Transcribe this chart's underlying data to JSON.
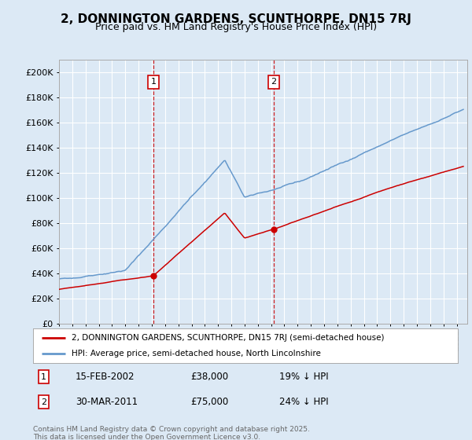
{
  "title": "2, DONNINGTON GARDENS, SCUNTHORPE, DN15 7RJ",
  "subtitle": "Price paid vs. HM Land Registry's House Price Index (HPI)",
  "background_color": "#dce9f5",
  "plot_bg_color": "#dce9f5",
  "hpi_color": "#6699cc",
  "price_color": "#cc0000",
  "ylim": [
    0,
    210000
  ],
  "yticks": [
    0,
    20000,
    40000,
    60000,
    80000,
    100000,
    120000,
    140000,
    160000,
    180000,
    200000
  ],
  "sale1_year": 2002.12,
  "sale1_price": 38000,
  "sale1_date": "15-FEB-2002",
  "sale1_note": "19% ↓ HPI",
  "sale2_year": 2011.21,
  "sale2_price": 75000,
  "sale2_date": "30-MAR-2011",
  "sale2_note": "24% ↓ HPI",
  "legend_line1": "2, DONNINGTON GARDENS, SCUNTHORPE, DN15 7RJ (semi-detached house)",
  "legend_line2": "HPI: Average price, semi-detached house, North Lincolnshire",
  "footer": "Contains HM Land Registry data © Crown copyright and database right 2025.\nThis data is licensed under the Open Government Licence v3.0.",
  "xstart_year": 1995,
  "xend_year": 2025
}
